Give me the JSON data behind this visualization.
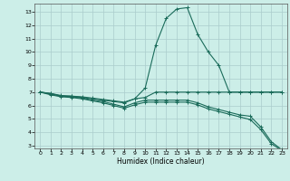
{
  "title": "",
  "xlabel": "Humidex (Indice chaleur)",
  "bg_color": "#cceee8",
  "grid_color": "#aacccc",
  "line_color": "#1a6b5a",
  "xlim": [
    -0.5,
    23.5
  ],
  "ylim": [
    2.8,
    13.6
  ],
  "yticks": [
    3,
    4,
    5,
    6,
    7,
    8,
    9,
    10,
    11,
    12,
    13
  ],
  "xticks": [
    0,
    1,
    2,
    3,
    4,
    5,
    6,
    7,
    8,
    9,
    10,
    11,
    12,
    13,
    14,
    15,
    16,
    17,
    18,
    19,
    20,
    21,
    22,
    23
  ],
  "curves": [
    {
      "x": [
        0,
        1,
        2,
        3,
        4,
        5,
        6,
        7,
        8,
        9,
        10,
        11,
        12,
        13,
        14,
        15,
        16,
        17,
        18,
        19,
        20,
        21,
        22,
        23
      ],
      "y": [
        7.0,
        6.9,
        6.7,
        6.7,
        6.6,
        6.5,
        6.4,
        6.3,
        6.2,
        6.5,
        7.3,
        10.5,
        12.5,
        13.2,
        13.3,
        11.3,
        10.0,
        9.0,
        7.0,
        7.0,
        7.0,
        7.0,
        7.0,
        7.0
      ]
    },
    {
      "x": [
        0,
        1,
        2,
        3,
        4,
        5,
        6,
        7,
        8,
        9,
        10,
        11,
        12,
        13,
        14,
        15,
        16,
        17,
        18,
        19,
        20,
        21,
        22,
        23
      ],
      "y": [
        7.0,
        6.9,
        6.75,
        6.7,
        6.65,
        6.55,
        6.45,
        6.35,
        6.25,
        6.5,
        6.6,
        7.0,
        7.0,
        7.0,
        7.0,
        7.0,
        7.0,
        7.0,
        7.0,
        7.0,
        7.0,
        7.0,
        7.0,
        7.0
      ]
    },
    {
      "x": [
        0,
        1,
        2,
        3,
        4,
        5,
        6,
        7,
        8,
        9,
        10,
        11,
        12,
        13,
        14,
        15,
        16,
        17,
        18,
        19,
        20,
        21,
        22,
        23
      ],
      "y": [
        7.0,
        6.85,
        6.7,
        6.65,
        6.55,
        6.4,
        6.3,
        6.1,
        5.9,
        6.2,
        6.4,
        6.4,
        6.4,
        6.4,
        6.4,
        6.2,
        5.9,
        5.7,
        5.5,
        5.3,
        5.2,
        4.4,
        3.3,
        2.7
      ]
    },
    {
      "x": [
        0,
        1,
        2,
        3,
        4,
        5,
        6,
        7,
        8,
        9,
        10,
        11,
        12,
        13,
        14,
        15,
        16,
        17,
        18,
        19,
        20,
        21,
        22,
        23
      ],
      "y": [
        7.0,
        6.8,
        6.65,
        6.6,
        6.5,
        6.35,
        6.2,
        6.0,
        5.8,
        6.05,
        6.25,
        6.25,
        6.25,
        6.25,
        6.25,
        6.05,
        5.75,
        5.55,
        5.35,
        5.15,
        4.95,
        4.2,
        3.15,
        2.65
      ]
    }
  ]
}
